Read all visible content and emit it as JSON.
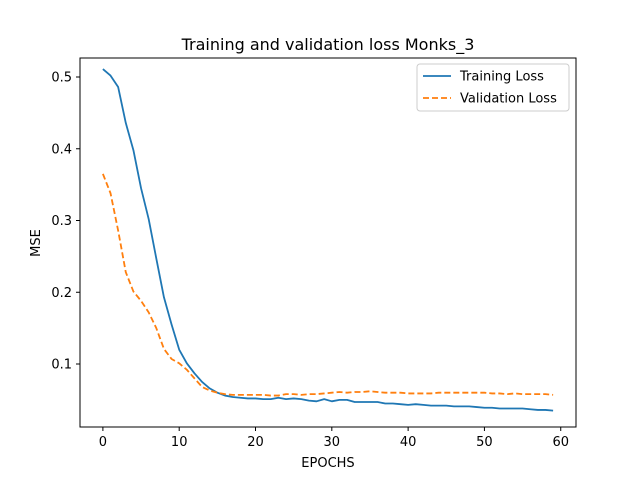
{
  "chart_data": {
    "type": "line",
    "title": "Training and validation loss Monks_3",
    "xlabel": "EPOCHS",
    "ylabel": "MSE",
    "xlim": [
      -3,
      62
    ],
    "ylim": [
      0.0122,
      0.5265
    ],
    "xticks": [
      0,
      10,
      20,
      30,
      40,
      50,
      60
    ],
    "yticks": [
      0.1,
      0.2,
      0.3,
      0.4,
      0.5
    ],
    "xtick_labels": [
      "0",
      "10",
      "20",
      "30",
      "40",
      "50",
      "60"
    ],
    "ytick_labels": [
      "0.1",
      "0.2",
      "0.3",
      "0.4",
      "0.5"
    ],
    "grid": false,
    "legend_position": "top-right",
    "x": [
      0,
      1,
      2,
      3,
      4,
      5,
      6,
      7,
      8,
      9,
      10,
      11,
      12,
      13,
      14,
      15,
      16,
      17,
      18,
      19,
      20,
      21,
      22,
      23,
      24,
      25,
      26,
      27,
      28,
      29,
      30,
      31,
      32,
      33,
      34,
      35,
      36,
      37,
      38,
      39,
      40,
      41,
      42,
      43,
      44,
      45,
      46,
      47,
      48,
      49,
      50,
      51,
      52,
      53,
      54,
      55,
      56,
      57,
      58,
      59
    ],
    "series": [
      {
        "name": "Training Loss",
        "color": "#1f77b4",
        "style": "solid",
        "values": [
          0.511,
          0.502,
          0.486,
          0.436,
          0.398,
          0.345,
          0.302,
          0.247,
          0.193,
          0.155,
          0.12,
          0.101,
          0.087,
          0.075,
          0.066,
          0.06,
          0.056,
          0.054,
          0.053,
          0.052,
          0.052,
          0.051,
          0.051,
          0.053,
          0.051,
          0.052,
          0.051,
          0.049,
          0.048,
          0.051,
          0.048,
          0.05,
          0.05,
          0.047,
          0.047,
          0.047,
          0.047,
          0.045,
          0.045,
          0.044,
          0.043,
          0.044,
          0.043,
          0.042,
          0.042,
          0.042,
          0.041,
          0.041,
          0.041,
          0.04,
          0.039,
          0.039,
          0.038,
          0.038,
          0.038,
          0.038,
          0.037,
          0.036,
          0.036,
          0.035
        ]
      },
      {
        "name": "Validation Loss",
        "color": "#ff7f0e",
        "style": "dashed",
        "values": [
          0.365,
          0.338,
          0.286,
          0.228,
          0.201,
          0.188,
          0.172,
          0.15,
          0.121,
          0.107,
          0.101,
          0.092,
          0.08,
          0.068,
          0.063,
          0.06,
          0.058,
          0.057,
          0.057,
          0.057,
          0.057,
          0.057,
          0.056,
          0.056,
          0.058,
          0.058,
          0.057,
          0.058,
          0.058,
          0.059,
          0.06,
          0.061,
          0.06,
          0.061,
          0.061,
          0.062,
          0.061,
          0.06,
          0.06,
          0.06,
          0.059,
          0.059,
          0.059,
          0.059,
          0.06,
          0.06,
          0.06,
          0.06,
          0.06,
          0.06,
          0.06,
          0.059,
          0.059,
          0.058,
          0.059,
          0.058,
          0.058,
          0.058,
          0.058,
          0.057
        ]
      }
    ]
  }
}
